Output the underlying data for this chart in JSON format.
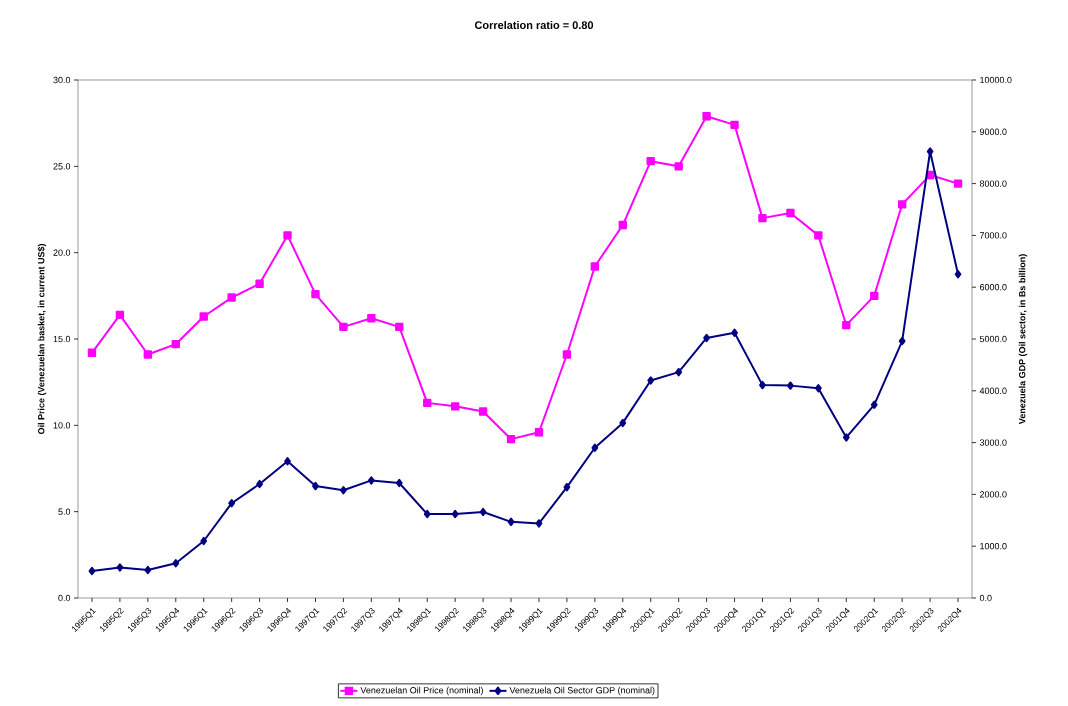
{
  "chart_data": {
    "type": "line",
    "title": "Correlation ratio = 0.80",
    "ylabel": "Oil Price (Venezuelan basket, in current US$)",
    "y2label": "Venezuela GDP (Oil sector, in Bs billion)",
    "categories": [
      "1995Q1",
      "1995Q2",
      "1995Q3",
      "1995Q4",
      "1996Q1",
      "1996Q2",
      "1996Q3",
      "1996Q4",
      "1997Q1",
      "1997Q2",
      "1997Q3",
      "1997Q4",
      "1998Q1",
      "1998Q2",
      "1998Q3",
      "1998Q4",
      "1999Q1",
      "1999Q2",
      "1999Q3",
      "1999Q4",
      "2000Q1",
      "2000Q2",
      "2000Q3",
      "2000Q4",
      "2001Q1",
      "2001Q2",
      "2001Q3",
      "2001Q4",
      "2002Q1",
      "2002Q2",
      "2002Q3",
      "2002Q4"
    ],
    "series": [
      {
        "name": "Venezuelan Oil Price (nominal)",
        "color": "#ff00ff",
        "marker": "square",
        "values": [
          14.2,
          16.4,
          14.1,
          14.7,
          16.3,
          17.4,
          18.2,
          21.0,
          17.6,
          15.7,
          16.2,
          15.7,
          11.3,
          11.1,
          10.8,
          9.2,
          9.6,
          14.1,
          19.2,
          21.6,
          25.3,
          25.0,
          27.9,
          27.4,
          22.0,
          22.3,
          21.0,
          15.8,
          17.5,
          22.8,
          24.5,
          24.0
        ]
      },
      {
        "name": "Venezuela Oil Sector GDP (nominal)",
        "color": "#000080",
        "marker": "diamond",
        "axis": "y2",
        "values": [
          520,
          590,
          540,
          670,
          1100,
          1830,
          2200,
          2640,
          2160,
          2080,
          2270,
          2220,
          1620,
          1620,
          1660,
          1470,
          1440,
          2140,
          2900,
          3380,
          4200,
          4360,
          5020,
          5120,
          4110,
          4100,
          4050,
          3100,
          3730,
          4960,
          8620,
          6250
        ]
      }
    ],
    "ylim": [
      0,
      30
    ],
    "yticks": [
      {
        "value": 0,
        "label": "0.0"
      },
      {
        "value": 5,
        "label": "5.0"
      },
      {
        "value": 10,
        "label": "10.0"
      },
      {
        "value": 15,
        "label": "15.0"
      },
      {
        "value": 20,
        "label": "20.0"
      },
      {
        "value": 25,
        "label": "25.0"
      },
      {
        "value": 30,
        "label": "30.0"
      }
    ],
    "y2lim": [
      0,
      10000
    ],
    "y2ticks": [
      {
        "value": 0,
        "label": "0.0"
      },
      {
        "value": 1000,
        "label": "1000.0"
      },
      {
        "value": 2000,
        "label": "2000.0"
      },
      {
        "value": 3000,
        "label": "3000.0"
      },
      {
        "value": 4000,
        "label": "4000.0"
      },
      {
        "value": 5000,
        "label": "5000.0"
      },
      {
        "value": 6000,
        "label": "6000.0"
      },
      {
        "value": 7000,
        "label": "7000.0"
      },
      {
        "value": 8000,
        "label": "8000.0"
      },
      {
        "value": 9000,
        "label": "9000.0"
      },
      {
        "value": 10000,
        "label": "10000.0"
      }
    ],
    "grid": false,
    "legend": "bottom",
    "line_style": "solid"
  }
}
